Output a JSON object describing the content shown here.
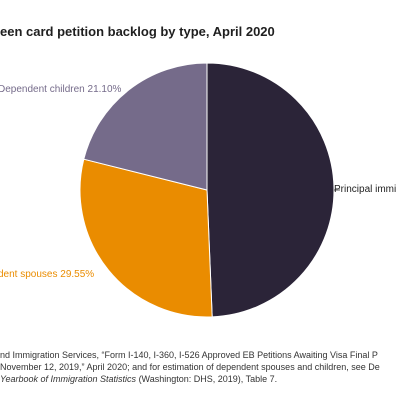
{
  "title": "een card petition backlog by type, April 2020",
  "chart_data": {
    "type": "pie",
    "slices": [
      {
        "label": "Principal immi",
        "value": 49.35,
        "value_text": "",
        "color": "#2b2438"
      },
      {
        "label": "dent spouses",
        "value": 29.55,
        "value_text": "29.55%",
        "color": "#ea8c00"
      },
      {
        "label": "Dependent children",
        "value": 21.1,
        "value_text": "21.10%",
        "color": "#756b8a"
      }
    ],
    "label_colors": {
      "Principal immi": "#1f1f1f",
      "dent spouses": "#ea8c00",
      "Dependent children": "#756b8a"
    },
    "legend": "none"
  },
  "source": {
    "line1": "nd Immigration Services, “Form I-140, I-360, I-526 Approved EB Petitions Awaiting Visa Final P",
    "line2": "November 12, 2019,” April 2020; and for estimation of dependent spouses and children, see De",
    "line3_italic": "Yearbook of Immigration Statistics",
    "line3_rest": " (Washington: DHS, 2019), Table 7."
  }
}
